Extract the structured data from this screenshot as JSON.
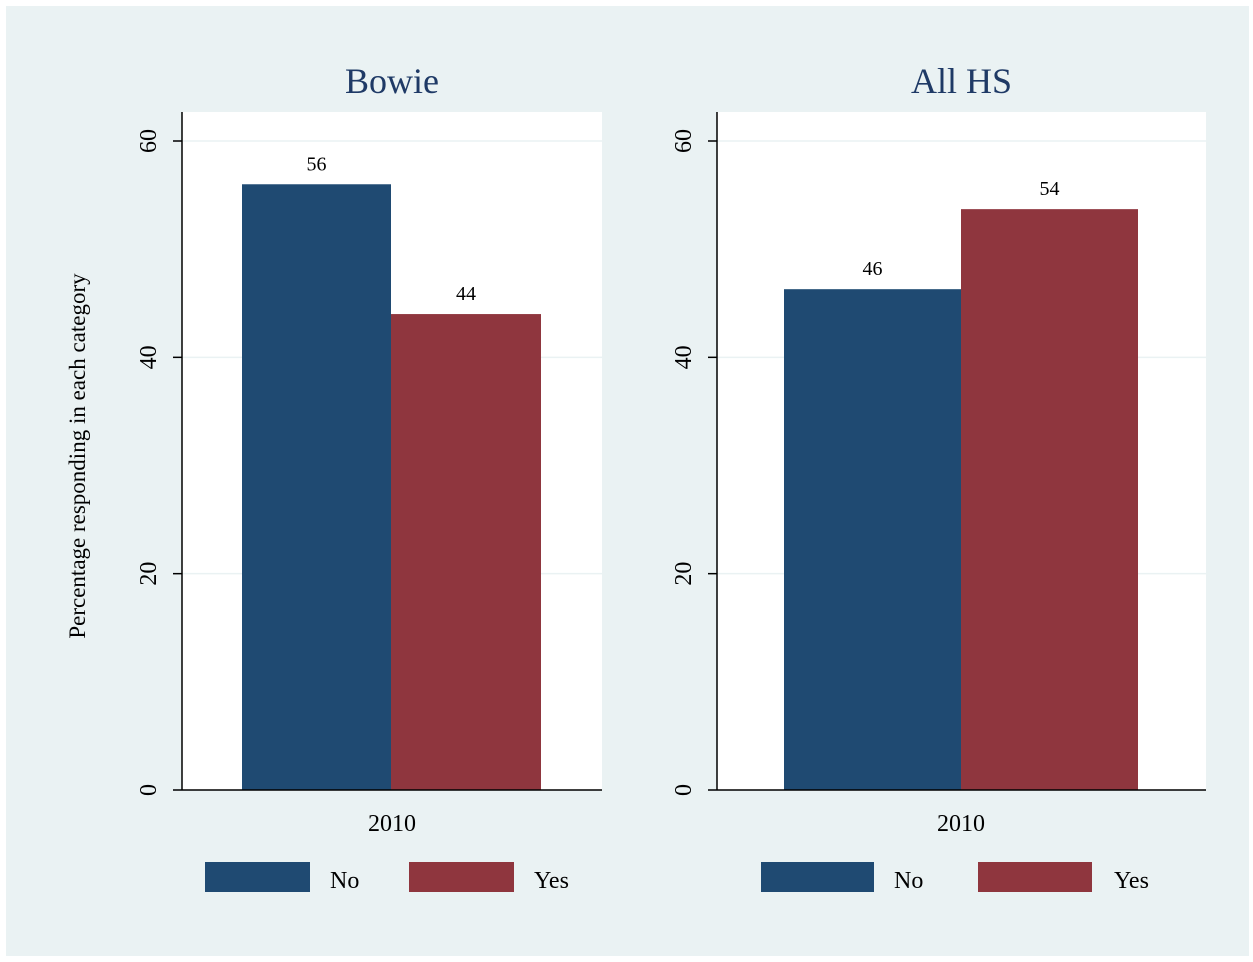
{
  "colors": {
    "no": "#1f4a72",
    "yes": "#8f363e",
    "title": "#1f3a66",
    "plot_bg": "#ffffff",
    "grid": "#eaf2f3"
  },
  "ylabel": "Percentage responding in each category",
  "chart_data": [
    {
      "type": "bar",
      "title": "Bowie",
      "categories": [
        "2010"
      ],
      "series": [
        {
          "name": "No",
          "values": [
            56
          ]
        },
        {
          "name": "Yes",
          "values": [
            44
          ]
        }
      ],
      "data_labels": [
        "56",
        "44"
      ],
      "ylabel": "Percentage responding in each category",
      "ylim": [
        0,
        60
      ],
      "yticks": [
        0,
        20,
        40,
        60
      ],
      "grid": true,
      "legend": [
        "No",
        "Yes"
      ],
      "legend_position": "bottom"
    },
    {
      "type": "bar",
      "title": "All HS",
      "categories": [
        "2010"
      ],
      "series": [
        {
          "name": "No",
          "values": [
            46.3
          ]
        },
        {
          "name": "Yes",
          "values": [
            53.7
          ]
        }
      ],
      "data_labels": [
        "46",
        "54"
      ],
      "ylim": [
        0,
        60
      ],
      "yticks": [
        0,
        20,
        40,
        60
      ],
      "grid": true,
      "legend": [
        "No",
        "Yes"
      ],
      "legend_position": "bottom"
    }
  ]
}
